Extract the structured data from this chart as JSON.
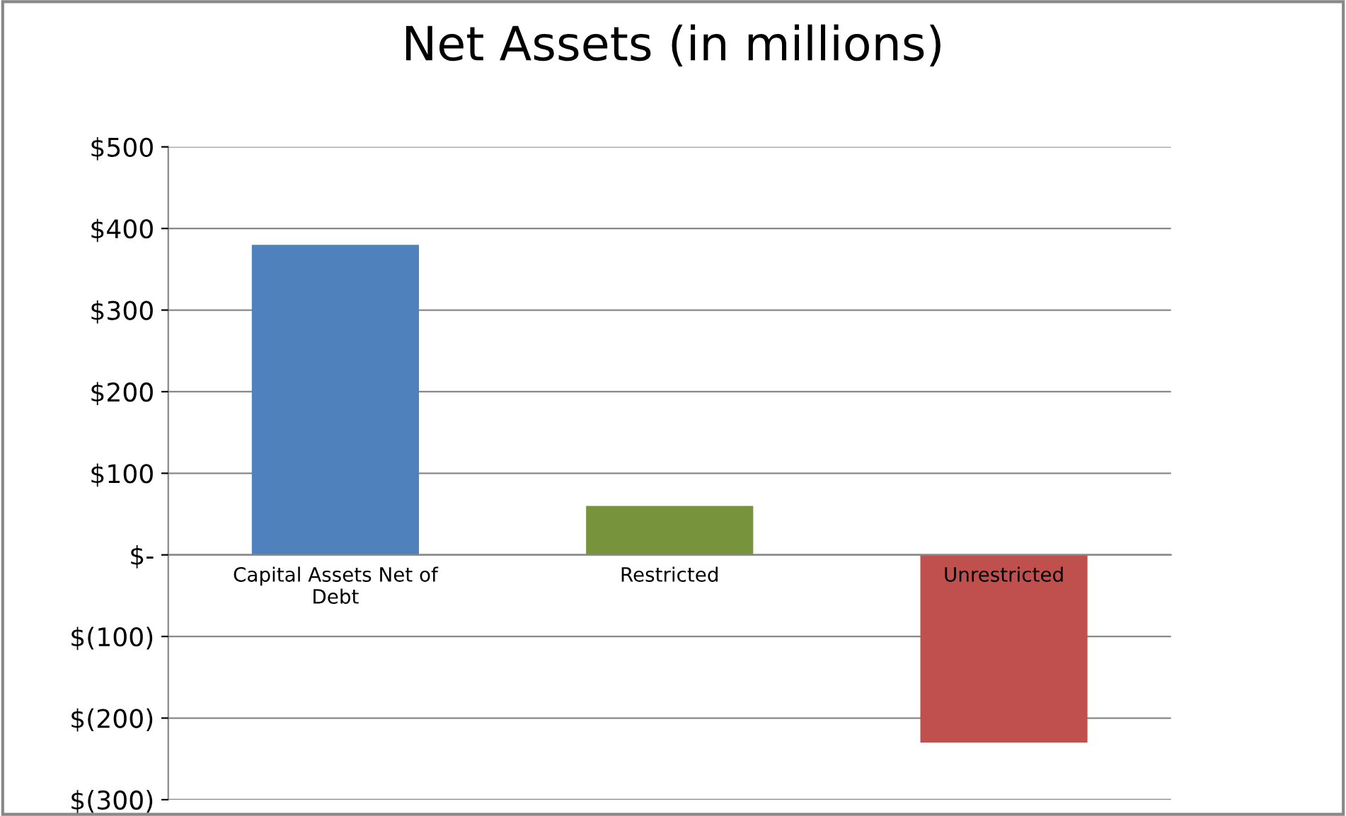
{
  "chart_data": {
    "type": "bar",
    "title": "Net Assets (in millions)",
    "categories": [
      "Capital Assets Net of\nDebt",
      "Restricted",
      "Unrestricted"
    ],
    "values": [
      380,
      60,
      -230
    ],
    "colors": [
      "#4f81bd",
      "#77933c",
      "#c0504d"
    ],
    "ylim": [
      -300,
      500
    ],
    "yticks": [
      {
        "value": 500,
        "label": "$500"
      },
      {
        "value": 400,
        "label": "$400"
      },
      {
        "value": 300,
        "label": "$300"
      },
      {
        "value": 200,
        "label": "$200"
      },
      {
        "value": 100,
        "label": "$100"
      },
      {
        "value": 0,
        "label": "$-"
      },
      {
        "value": -100,
        "label": "$(100)"
      },
      {
        "value": -200,
        "label": "$(200)"
      },
      {
        "value": -300,
        "label": "$(300)"
      }
    ],
    "grid": "y"
  }
}
